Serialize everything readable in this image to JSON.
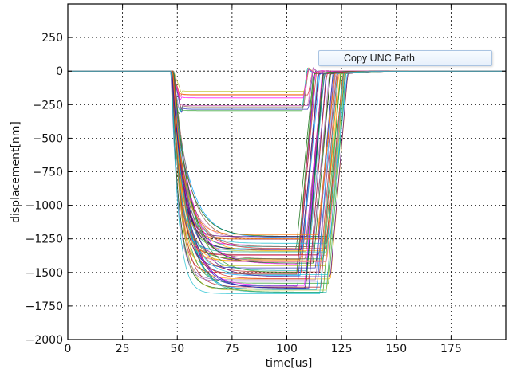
{
  "context_menu": {
    "copy_unc_path_label": "Copy UNC Path"
  },
  "chart_data": {
    "type": "line",
    "xlabel": "time[us]",
    "ylabel": "displacement[nm]",
    "xlim": [
      0,
      200
    ],
    "ylim": [
      -2000,
      500
    ],
    "x_ticks": [
      "0",
      "25",
      "50",
      "75",
      "100",
      "125",
      "150",
      "175"
    ],
    "x_tick_values": [
      0,
      25,
      50,
      75,
      100,
      125,
      150,
      175
    ],
    "y_ticks": [
      "250",
      "0",
      "−250",
      "−500",
      "−750",
      "−1000",
      "−1250",
      "−1500",
      "−1750",
      "−2000"
    ],
    "y_tick_values": [
      250,
      0,
      -250,
      -500,
      -750,
      -1000,
      -1250,
      -1500,
      -1750,
      -2000
    ],
    "grid": true,
    "series_groups": [
      {
        "name": "",
        "count": 10,
        "plateau_min": -300,
        "plateau_max": -140,
        "drop_start": 47,
        "rise_start": 107
      },
      {
        "name": "",
        "count": 60,
        "plateau_min": -1660,
        "plateau_max": -1200,
        "drop_start": 47,
        "rise_start": 104
      }
    ],
    "colors": [
      "#1f1fb4",
      "#2ca02c",
      "#d62728",
      "#ff7f0e",
      "#9467bd",
      "#17becf",
      "#e377c2",
      "#8c564b",
      "#bcbd22",
      "#ff00ff",
      "#00a0ff",
      "#006400",
      "#b22222",
      "#ffa500",
      "#4b0082",
      "#20b2aa"
    ]
  }
}
